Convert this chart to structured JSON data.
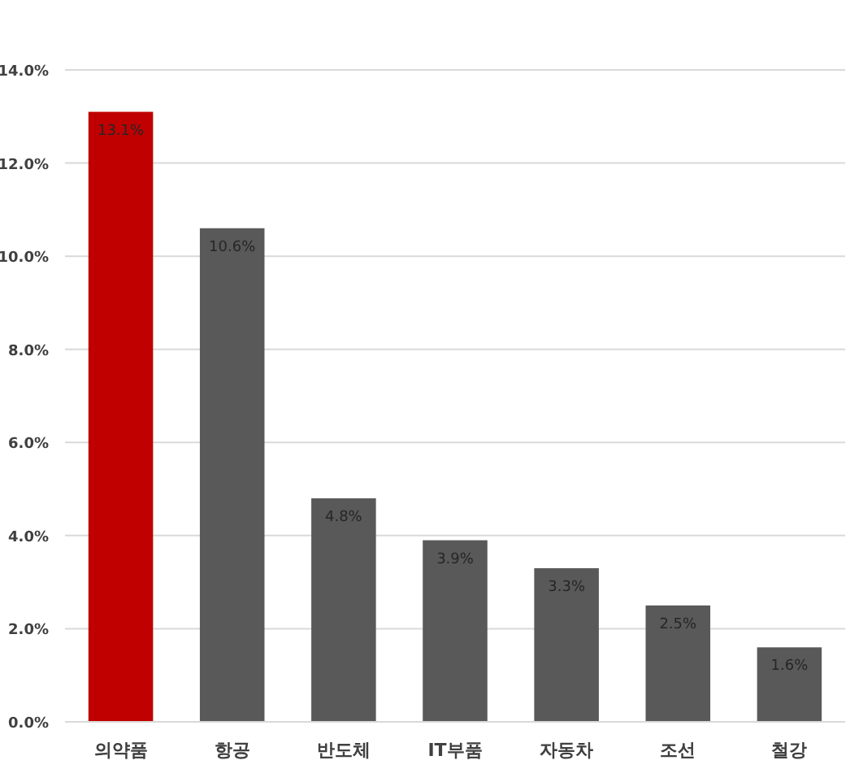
{
  "chart_data": {
    "type": "bar",
    "categories": [
      "의약품",
      "항공",
      "반도체",
      "IT부품",
      "자동차",
      "조선",
      "철강"
    ],
    "values": [
      13.1,
      10.6,
      4.8,
      3.9,
      3.3,
      2.5,
      1.6
    ],
    "colors": [
      "#c00000",
      "#595959",
      "#595959",
      "#595959",
      "#595959",
      "#595959",
      "#595959"
    ],
    "value_labels": [
      "13.1%",
      "10.6%",
      "4.8%",
      "3.9%",
      "3.3%",
      "2.5%",
      "1.6%"
    ],
    "ylim": [
      0,
      14
    ],
    "yticks": [
      {
        "value": 0,
        "label": "0.0%"
      },
      {
        "value": 2,
        "label": "2.0%"
      },
      {
        "value": 4,
        "label": "4.0%"
      },
      {
        "value": 6,
        "label": "6.0%"
      },
      {
        "value": 8,
        "label": "8.0%"
      },
      {
        "value": 10,
        "label": "10.0%"
      },
      {
        "value": 12,
        "label": "12.0%"
      },
      {
        "value": 14,
        "label": "14.0%"
      }
    ],
    "grid": "y"
  }
}
